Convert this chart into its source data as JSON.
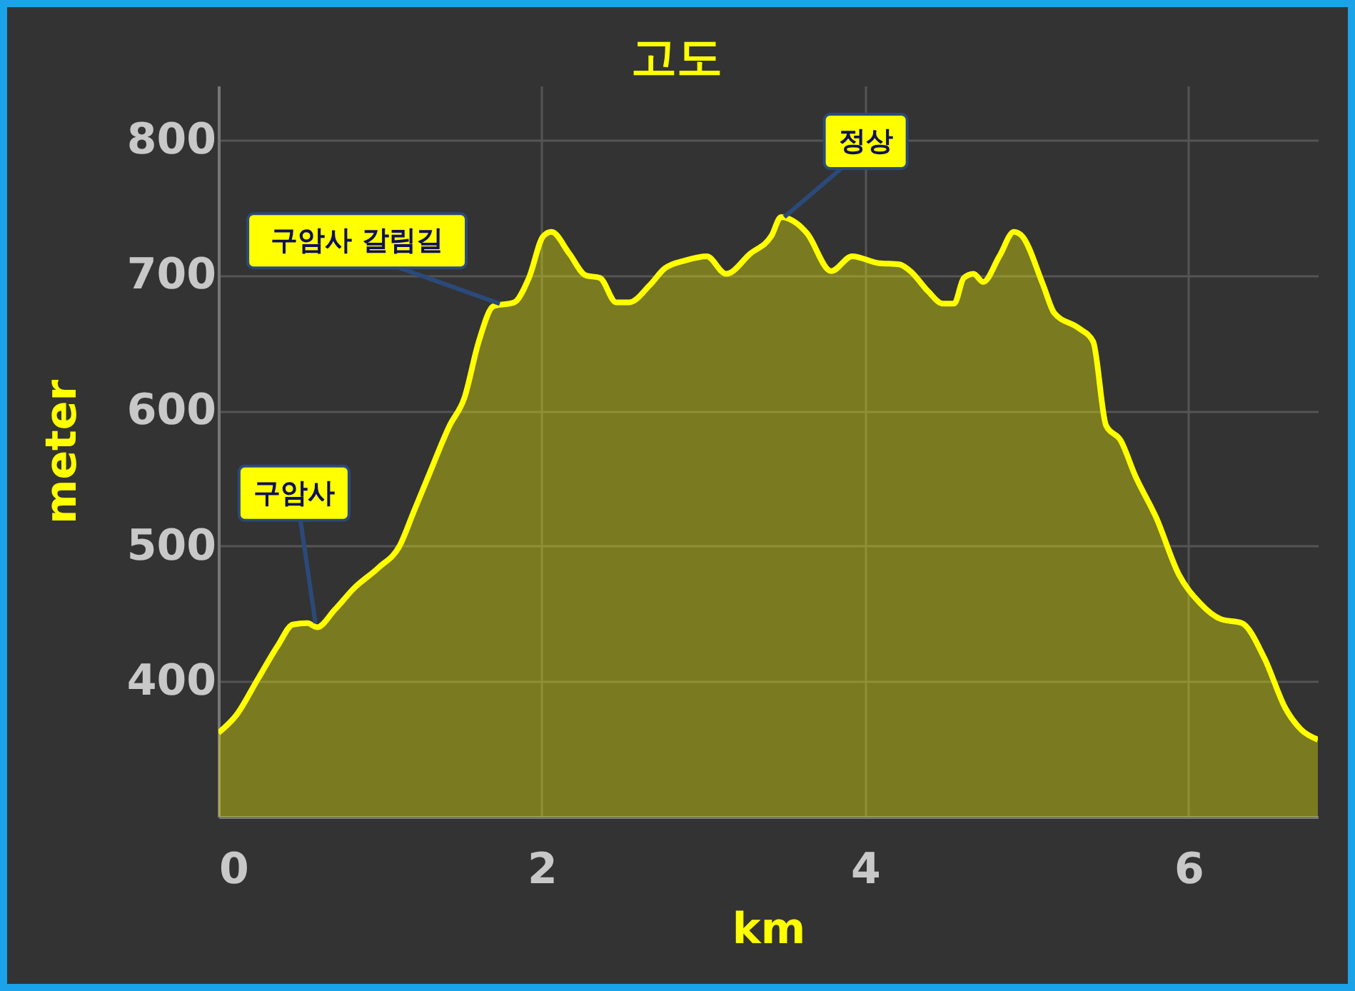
{
  "chart_data": {
    "type": "area",
    "title": "고도",
    "xlabel": "km",
    "ylabel": "meter",
    "x": [
      0,
      0.11,
      0.24,
      0.37,
      0.46,
      0.55,
      0.61,
      0.72,
      0.84,
      0.99,
      1.12,
      1.21,
      1.3,
      1.43,
      1.52,
      1.61,
      1.7,
      1.83,
      1.92,
      2.01,
      2.06,
      2.17,
      2.27,
      2.36,
      2.46,
      2.54,
      2.67,
      2.76,
      2.89,
      3.02,
      3.14,
      3.29,
      3.42,
      3.48,
      3.58,
      3.64,
      3.79,
      3.92,
      4.08,
      4.21,
      4.28,
      4.39,
      4.48,
      4.55,
      4.61,
      4.67,
      4.73,
      4.83,
      4.92,
      4.97,
      5.1,
      5.17,
      5.32,
      5.41,
      5.49,
      5.58,
      5.67,
      5.8,
      5.94,
      6.07,
      6.2,
      6.33,
      6.47,
      6.6,
      6.7,
      6.8
    ],
    "series": [
      {
        "color": "#ffff00",
        "values": [
          362,
          375,
          401,
          427,
          442,
          443,
          440,
          453,
          469,
          484,
          500,
          526,
          552,
          589,
          609,
          651,
          677,
          680,
          698,
          729,
          732,
          716,
          700,
          698,
          680,
          680,
          693,
          705,
          711,
          714,
          701,
          716,
          729,
          743,
          738,
          731,
          703,
          714,
          709,
          708,
          703,
          688,
          679,
          679,
          698,
          701,
          695,
          714,
          732,
          729,
          693,
          672,
          661,
          651,
          589,
          578,
          552,
          521,
          479,
          458,
          446,
          443,
          417,
          380,
          364,
          357
        ]
      }
    ],
    "xlim": [
      0,
      6.8
    ],
    "xticks": [
      0,
      2,
      4,
      6
    ],
    "ylim": [
      300,
      840
    ],
    "yticks": [
      400,
      500,
      600,
      700,
      800
    ],
    "grid": true,
    "annotations": [
      {
        "text": "구암사",
        "x": 0.6,
        "y": 443
      },
      {
        "text": "구암사 갈림길",
        "x": 1.74,
        "y": 679
      },
      {
        "text": "정상",
        "x": 3.5,
        "y": 743
      }
    ]
  }
}
